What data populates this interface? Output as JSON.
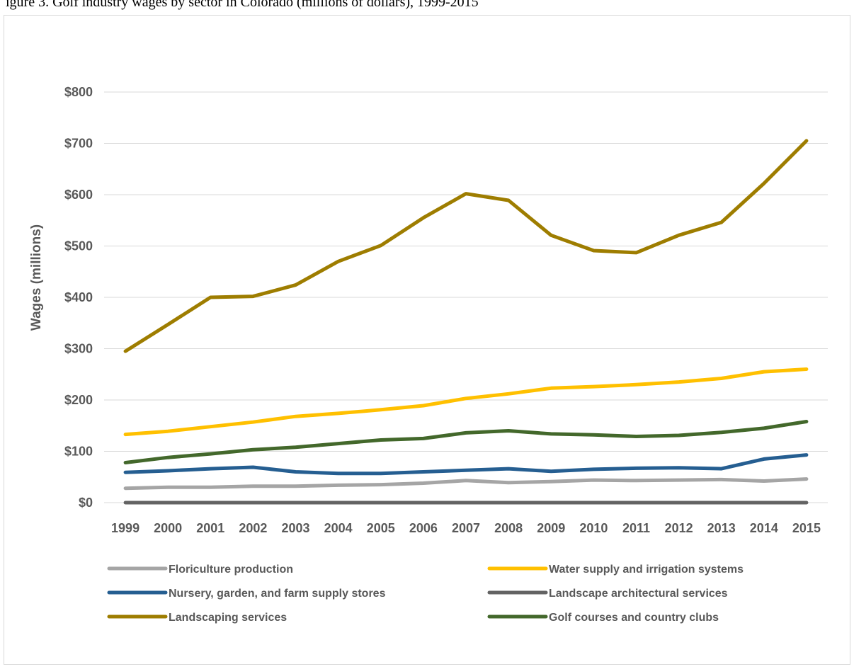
{
  "caption": "igure 3. Golf industry wages by sector in Colorado (millions of dollars), 1999-2015",
  "chart_data": {
    "type": "line",
    "title": "",
    "xlabel": "",
    "ylabel": "Wages (millions)",
    "ylim": [
      0,
      800
    ],
    "ytick_values": [
      0,
      100,
      200,
      300,
      400,
      500,
      600,
      700,
      800
    ],
    "ytick_labels": [
      "$0",
      "$100",
      "$200",
      "$300",
      "$400",
      "$500",
      "$600",
      "$700",
      "$800"
    ],
    "grid": true,
    "legend_position": "bottom",
    "categories": [
      "1999",
      "2000",
      "2001",
      "2002",
      "2003",
      "2004",
      "2005",
      "2006",
      "2007",
      "2008",
      "2009",
      "2010",
      "2011",
      "2012",
      "2013",
      "2014",
      "2015"
    ],
    "series": [
      {
        "name": "Floriculture production",
        "color": "#a5a5a5",
        "values": [
          28,
          30,
          30,
          32,
          32,
          34,
          35,
          38,
          43,
          39,
          41,
          44,
          43,
          44,
          45,
          42,
          46
        ]
      },
      {
        "name": "Water supply and irrigation systems",
        "color": "#ffc000",
        "values": [
          133,
          139,
          148,
          157,
          168,
          174,
          181,
          189,
          203,
          212,
          223,
          226,
          230,
          235,
          242,
          255,
          260
        ]
      },
      {
        "name": "Nursery, garden, and farm supply stores",
        "color": "#255e91",
        "values": [
          59,
          62,
          66,
          69,
          60,
          57,
          57,
          60,
          63,
          66,
          61,
          65,
          67,
          68,
          66,
          85,
          93
        ]
      },
      {
        "name": "Landscape architectural services",
        "color": "#636363",
        "values": [
          0,
          0,
          0,
          0,
          0,
          0,
          0,
          0,
          0,
          0,
          0,
          0,
          0,
          0,
          0,
          0,
          0
        ]
      },
      {
        "name": "Landscaping services",
        "color": "#9e7d00",
        "values": [
          295,
          347,
          400,
          402,
          424,
          470,
          501,
          555,
          602,
          589,
          521,
          491,
          487,
          521,
          546,
          622,
          705
        ]
      },
      {
        "name": "Golf courses and country clubs",
        "color": "#43682b",
        "values": [
          78,
          88,
          95,
          103,
          108,
          115,
          122,
          125,
          136,
          140,
          134,
          132,
          129,
          131,
          137,
          145,
          158
        ]
      }
    ]
  }
}
